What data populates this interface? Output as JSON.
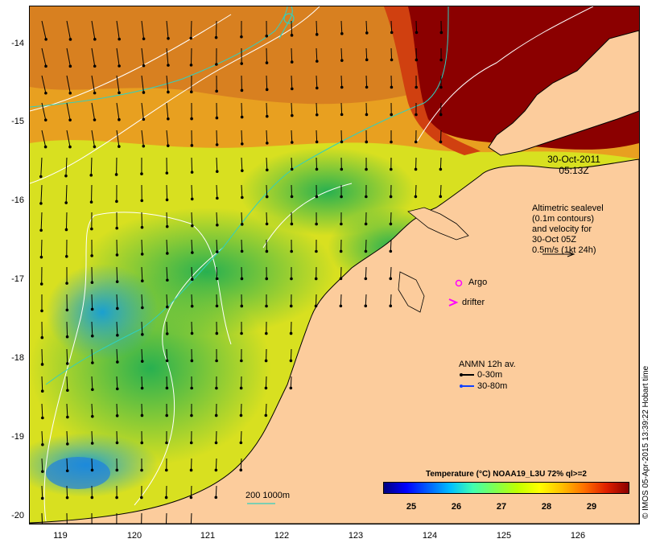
{
  "map": {
    "y_ticks": [
      "-14",
      "-15",
      "-16",
      "-17",
      "-18",
      "-19",
      "-20"
    ],
    "x_ticks": [
      "119",
      "120",
      "121",
      "122",
      "123",
      "124",
      "125",
      "126"
    ],
    "date_label_line1": "30-Oct-2011",
    "date_label_line2": "05:13Z",
    "altimetry_note": [
      "Altimetric sealevel",
      "(0.1m contours)",
      "and velocity for",
      "30-Oct 05Z",
      "0.5m/s (1kt 24h)"
    ],
    "argo_label": "Argo",
    "drifter_label": "drifter",
    "anmn_title": "ANMN 12h av.",
    "anmn_depth_shallow": "0-30m",
    "anmn_depth_deep": "30-80m",
    "bathy_label": "200  1000m",
    "colorbar_title": "Temperature (°C) NOAA19_L3U 72% ql>=2",
    "colorbar_ticks": [
      "25",
      "26",
      "27",
      "28",
      "29"
    ],
    "credit": "© IMOS 05-Apr-2015 13:39:22 Hobart time",
    "colors": {
      "land": "#fccc9c",
      "hot": "#8b0000",
      "warm": "#e88a1a",
      "mid": "#e8e020",
      "cool": "#30c850",
      "cold": "#20a0e0",
      "argo": "#ff00ff",
      "bathy": "#30d0c0"
    }
  }
}
